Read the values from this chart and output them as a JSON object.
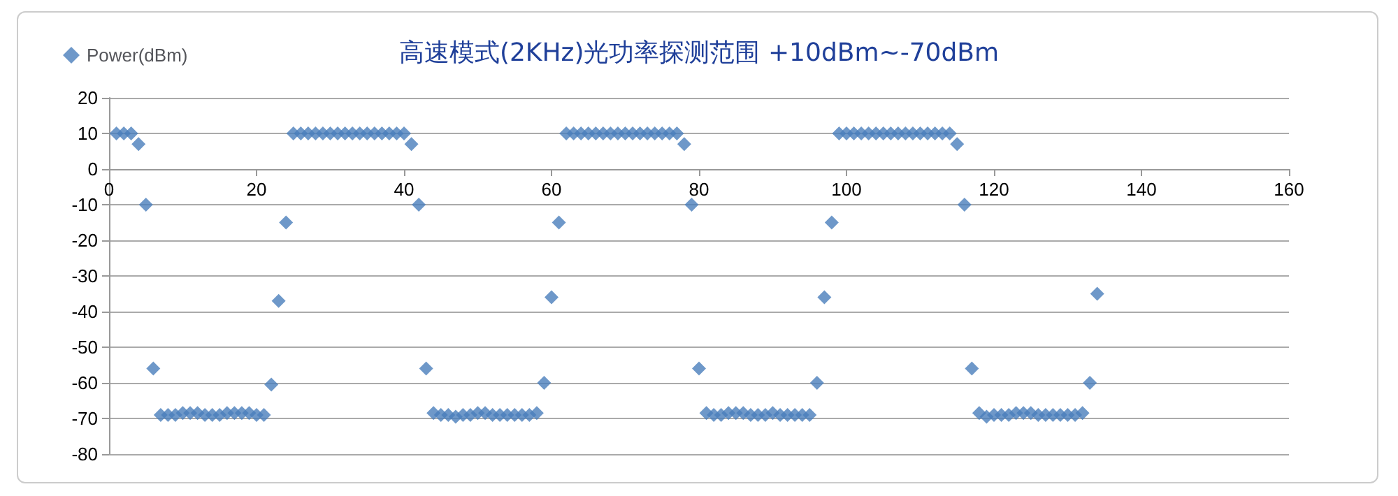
{
  "chart_data": {
    "type": "scatter",
    "title": "高速模式(2KHz)光功率探测范围 +10dBm~-70dBm",
    "x": [
      1,
      2,
      3,
      4,
      5,
      6,
      7,
      8,
      9,
      10,
      11,
      12,
      13,
      14,
      15,
      16,
      17,
      18,
      19,
      20,
      21,
      22,
      23,
      24,
      25,
      26,
      27,
      28,
      29,
      30,
      31,
      32,
      33,
      34,
      35,
      36,
      37,
      38,
      39,
      40,
      41,
      42,
      43,
      44,
      45,
      46,
      47,
      48,
      49,
      50,
      51,
      52,
      53,
      54,
      55,
      56,
      57,
      58,
      59,
      60,
      61,
      62,
      63,
      64,
      65,
      66,
      67,
      68,
      69,
      70,
      71,
      72,
      73,
      74,
      75,
      76,
      77,
      78,
      79,
      80,
      81,
      82,
      83,
      84,
      85,
      86,
      87,
      88,
      89,
      90,
      91,
      92,
      93,
      94,
      95,
      96,
      97,
      98,
      99,
      100,
      101,
      102,
      103,
      104,
      105,
      106,
      107,
      108,
      109,
      110,
      111,
      112,
      113,
      114,
      115,
      116,
      117,
      118,
      119,
      120,
      121,
      122,
      123,
      124,
      125,
      126,
      127,
      128,
      129,
      130,
      131,
      132,
      133,
      134
    ],
    "series": [
      {
        "name": "Power(dBm)",
        "color": "#4a7ebb",
        "values": [
          10,
          10,
          10,
          7,
          -10,
          -56,
          -69,
          -69,
          -69,
          -68.5,
          -68.5,
          -68.5,
          -69,
          -69,
          -69,
          -68.5,
          -68.5,
          -68.5,
          -68.5,
          -69,
          -69,
          -60.5,
          -37,
          -15,
          10,
          10,
          10,
          10,
          10,
          10,
          10,
          10,
          10,
          10,
          10,
          10,
          10,
          10,
          10,
          10,
          7,
          -10,
          -56,
          -68.5,
          -69,
          -69,
          -69.5,
          -69,
          -69,
          -68.5,
          -68.5,
          -69,
          -69,
          -69,
          -69,
          -69,
          -69,
          -68.5,
          -60,
          -36,
          -15,
          10,
          10,
          10,
          10,
          10,
          10,
          10,
          10,
          10,
          10,
          10,
          10,
          10,
          10,
          10,
          10,
          7,
          -10,
          -56,
          -68.5,
          -69,
          -69,
          -68.5,
          -68.5,
          -68.5,
          -69,
          -69,
          -69,
          -68.5,
          -69,
          -69,
          -69,
          -69,
          -69,
          -60,
          -36,
          -15,
          10,
          10,
          10,
          10,
          10,
          10,
          10,
          10,
          10,
          10,
          10,
          10,
          10,
          10,
          10,
          10,
          7,
          -10,
          -56,
          -68.5,
          -69.5,
          -69,
          -69,
          -69,
          -68.5,
          -68.5,
          -68.5,
          -69,
          -69,
          -69,
          -69,
          -69,
          -69,
          -68.5,
          -60,
          -35
        ]
      }
    ],
    "xlim": [
      0,
      160
    ],
    "xticks": [
      0,
      20,
      40,
      60,
      80,
      100,
      120,
      140,
      160
    ],
    "ylim": [
      -80,
      20
    ],
    "yticks": [
      -80,
      -70,
      -60,
      -50,
      -40,
      -30,
      -20,
      -10,
      0,
      10,
      20
    ],
    "grid": "y",
    "legend": "top left",
    "marker": "diamond"
  }
}
